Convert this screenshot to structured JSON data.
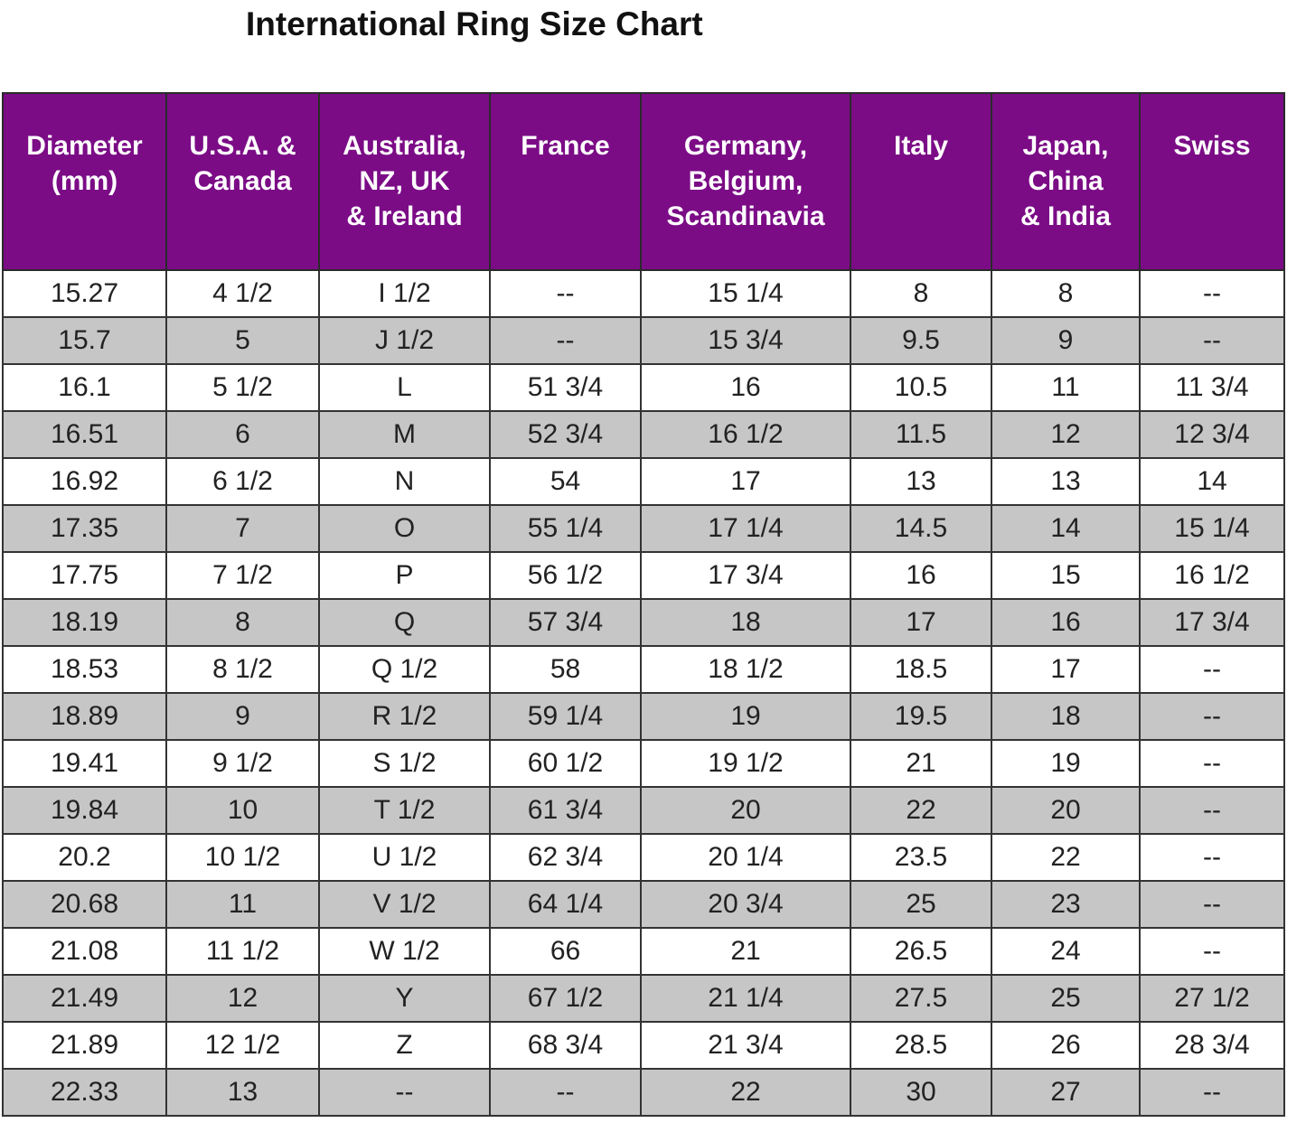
{
  "header": {
    "title": "International Ring Size Chart"
  },
  "table": {
    "columns": [
      [
        "Diameter",
        "(mm)"
      ],
      [
        "U.S.A. &",
        "Canada"
      ],
      [
        "Australia,",
        "NZ, UK",
        "& Ireland"
      ],
      [
        "France"
      ],
      [
        "Germany,",
        "Belgium,",
        "Scandinavia"
      ],
      [
        "Italy"
      ],
      [
        "Japan,",
        "China",
        "& India"
      ],
      [
        "Swiss"
      ]
    ],
    "rows": [
      [
        "15.27",
        "4 1/2",
        "I 1/2",
        "--",
        "15 1/4",
        "8",
        "8",
        "--"
      ],
      [
        "15.7",
        "5",
        "J 1/2",
        "--",
        "15 3/4",
        "9.5",
        "9",
        "--"
      ],
      [
        "16.1",
        "5 1/2",
        "L",
        "51 3/4",
        "16",
        "10.5",
        "11",
        "11 3/4"
      ],
      [
        "16.51",
        "6",
        "M",
        "52 3/4",
        "16 1/2",
        "11.5",
        "12",
        "12 3/4"
      ],
      [
        "16.92",
        "6 1/2",
        "N",
        "54",
        "17",
        "13",
        "13",
        "14"
      ],
      [
        "17.35",
        "7",
        "O",
        "55 1/4",
        "17 1/4",
        "14.5",
        "14",
        "15 1/4"
      ],
      [
        "17.75",
        "7 1/2",
        "P",
        "56 1/2",
        "17 3/4",
        "16",
        "15",
        "16 1/2"
      ],
      [
        "18.19",
        "8",
        "Q",
        "57 3/4",
        "18",
        "17",
        "16",
        "17 3/4"
      ],
      [
        "18.53",
        "8 1/2",
        "Q 1/2",
        "58",
        "18 1/2",
        "18.5",
        "17",
        "--"
      ],
      [
        "18.89",
        "9",
        "R 1/2",
        "59 1/4",
        "19",
        "19.5",
        "18",
        "--"
      ],
      [
        "19.41",
        "9 1/2",
        "S 1/2",
        "60 1/2",
        "19 1/2",
        "21",
        "19",
        "--"
      ],
      [
        "19.84",
        "10",
        "T 1/2",
        "61 3/4",
        "20",
        "22",
        "20",
        "--"
      ],
      [
        "20.2",
        "10 1/2",
        "U 1/2",
        "62 3/4",
        "20 1/4",
        "23.5",
        "22",
        "--"
      ],
      [
        "20.68",
        "11",
        "V 1/2",
        "64 1/4",
        "20 3/4",
        "25",
        "23",
        "--"
      ],
      [
        "21.08",
        "11 1/2",
        "W 1/2",
        "66",
        "21",
        "26.5",
        "24",
        "--"
      ],
      [
        "21.49",
        "12",
        "Y",
        "67 1/2",
        "21 1/4",
        "27.5",
        "25",
        "27 1/2"
      ],
      [
        "21.89",
        "12 1/2",
        "Z",
        "68 3/4",
        "21 3/4",
        "28.5",
        "26",
        "28 3/4"
      ],
      [
        "22.33",
        "13",
        "--",
        "--",
        "22",
        "30",
        "27",
        "--"
      ]
    ]
  }
}
